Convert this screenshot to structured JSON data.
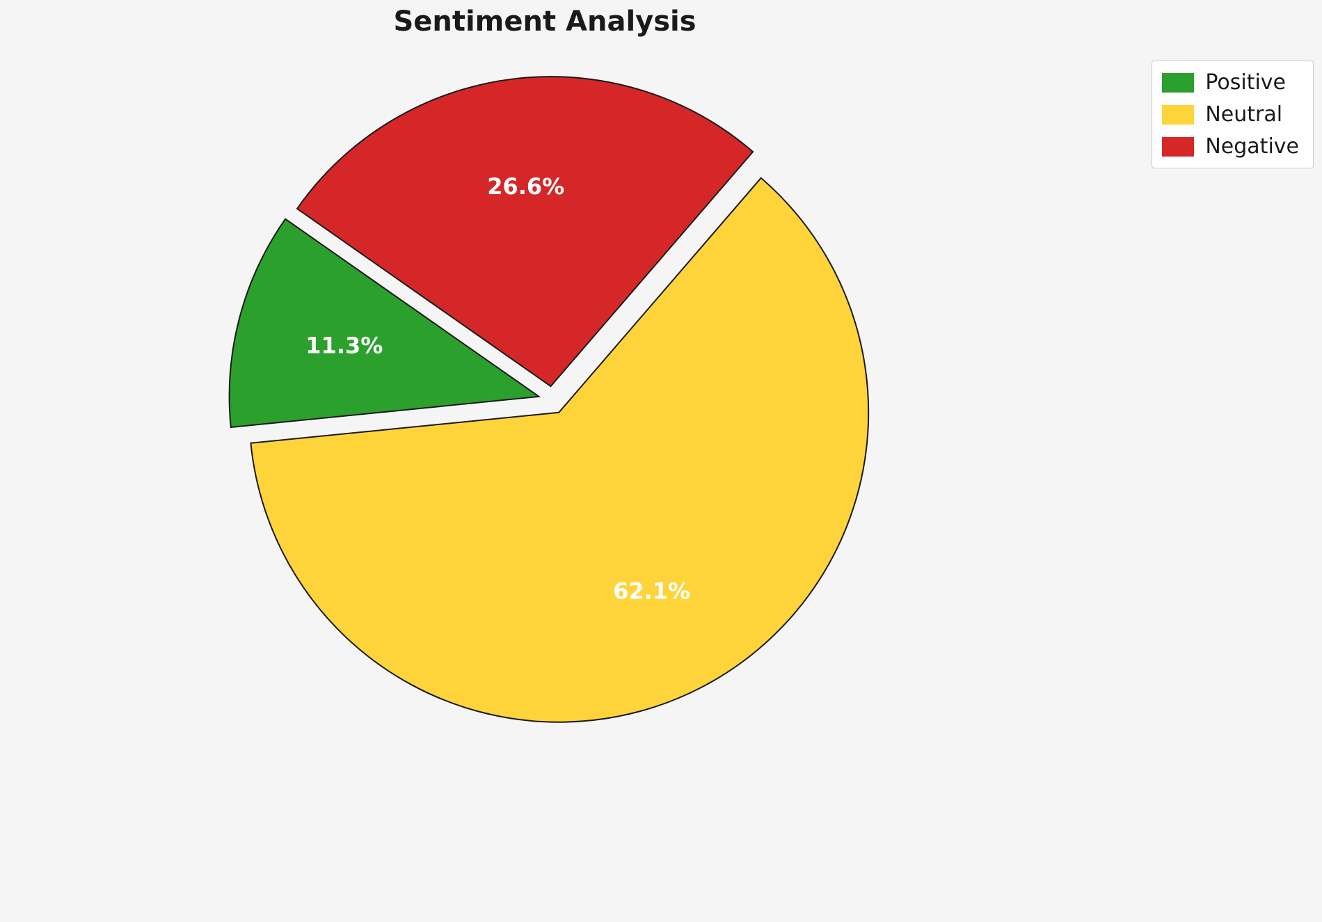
{
  "chart_data": {
    "type": "pie",
    "title": "Sentiment Analysis",
    "labels": [
      "Positive",
      "Neutral",
      "Negative"
    ],
    "values": [
      11.3,
      62.1,
      26.6
    ],
    "percent_labels": [
      "11.3%",
      "62.1%",
      "26.6%"
    ],
    "colors": [
      "#2ca02c",
      "#ffd43b",
      "#d62728"
    ],
    "label_color": "#ffffff",
    "edge_color": "#1a1a1a",
    "start_angle": 145,
    "counterclock": true,
    "explode": [
      0.045,
      0.045,
      0.045
    ],
    "legend_position": "upper right",
    "background": "#f5f5f5"
  },
  "legend": {
    "items": [
      {
        "label": "Positive",
        "color": "#2ca02c"
      },
      {
        "label": "Neutral",
        "color": "#ffd43b"
      },
      {
        "label": "Negative",
        "color": "#d62728"
      }
    ]
  }
}
